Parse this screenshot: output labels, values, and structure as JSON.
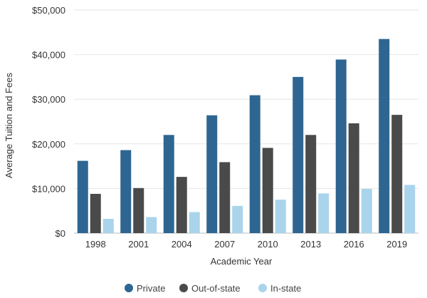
{
  "chart_data": {
    "type": "bar",
    "xlabel": "Academic Year",
    "ylabel": "Average Tuition and Fees",
    "categories": [
      "1998",
      "2001",
      "2004",
      "2007",
      "2010",
      "2013",
      "2016",
      "2019"
    ],
    "ylim": [
      0,
      50000
    ],
    "yticks": [
      0,
      10000,
      20000,
      30000,
      40000,
      50000
    ],
    "ytick_labels": [
      "$0",
      "$10,000",
      "$20,000",
      "$30,000",
      "$40,000",
      "$50,000"
    ],
    "grid": true,
    "legend_position": "bottom-center",
    "series": [
      {
        "name": "Private",
        "color": "#2e6691",
        "values": [
          16200,
          18600,
          22000,
          26400,
          30900,
          35000,
          38900,
          43500
        ]
      },
      {
        "name": "Out-of-state",
        "color": "#4a4a4a",
        "values": [
          8800,
          10100,
          12600,
          15900,
          19100,
          22000,
          24600,
          26500
        ]
      },
      {
        "name": "In-state",
        "color": "#a9d4ec",
        "values": [
          3200,
          3600,
          4700,
          6100,
          7500,
          8900,
          9900,
          10800
        ]
      }
    ]
  }
}
